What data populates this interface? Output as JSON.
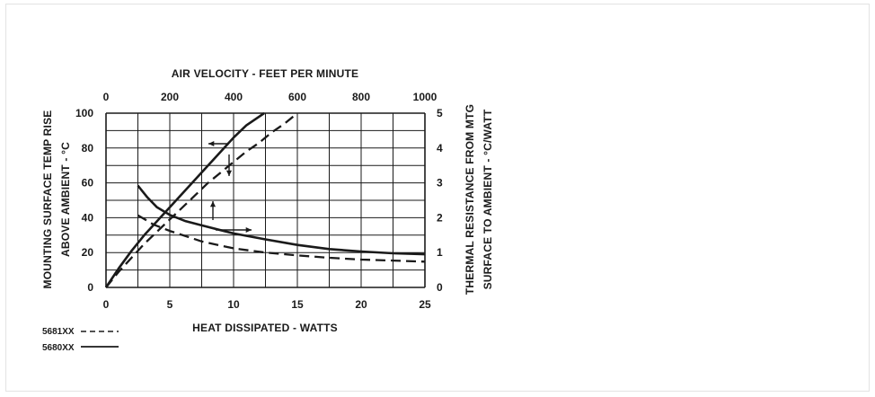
{
  "chart_data": {
    "type": "line",
    "top_axis": {
      "label": "AIR VELOCITY - FEET PER MINUTE",
      "ticks": [
        "0",
        "200",
        "400",
        "600",
        "800",
        "1000"
      ],
      "range": [
        0,
        1000
      ]
    },
    "bottom_axis": {
      "label": "HEAT DISSIPATED - WATTS",
      "ticks": [
        "0",
        "5",
        "10",
        "15",
        "20",
        "25"
      ],
      "range": [
        0,
        25
      ]
    },
    "left_axis": {
      "label_line1": "MOUNTING SURFACE TEMP RISE",
      "label_line2": "ABOVE AMBIENT - °C",
      "ticks": [
        "0",
        "20",
        "40",
        "60",
        "80",
        "100"
      ],
      "range": [
        0,
        100
      ]
    },
    "right_axis": {
      "label_line1": "THERMAL RESISTANCE FROM MTG",
      "label_line2": "SURFACE TO AMBIENT - °C/WATT",
      "ticks": [
        "0",
        "1",
        "2",
        "3",
        "4",
        "5"
      ],
      "range": [
        0,
        5
      ]
    },
    "grid": true,
    "series": [
      {
        "name": "5680XX",
        "style": "solid",
        "kind": "temp_rise_vs_watts",
        "points": [
          [
            0,
            0
          ],
          [
            1,
            11
          ],
          [
            2,
            21
          ],
          [
            3,
            30
          ],
          [
            4,
            38
          ],
          [
            5,
            46
          ],
          [
            6,
            54
          ],
          [
            7,
            62
          ],
          [
            8,
            70
          ],
          [
            9,
            78
          ],
          [
            10,
            86
          ],
          [
            11,
            93
          ],
          [
            12.4,
            100
          ]
        ]
      },
      {
        "name": "5681XX",
        "style": "dashed",
        "kind": "temp_rise_vs_watts",
        "points": [
          [
            0,
            0
          ],
          [
            1,
            9
          ],
          [
            2,
            17
          ],
          [
            3,
            25
          ],
          [
            4,
            32
          ],
          [
            5,
            39
          ],
          [
            6,
            46
          ],
          [
            7,
            53
          ],
          [
            8,
            60
          ],
          [
            9,
            66
          ],
          [
            10,
            72
          ],
          [
            11,
            78
          ],
          [
            12,
            83
          ],
          [
            13,
            89
          ],
          [
            14,
            94
          ],
          [
            15,
            100
          ]
        ]
      },
      {
        "name": "5680XX",
        "style": "solid",
        "kind": "thermal_resistance_vs_air_velocity",
        "points": [
          [
            100,
            2.92
          ],
          [
            130,
            2.58
          ],
          [
            160,
            2.3
          ],
          [
            200,
            2.08
          ],
          [
            250,
            1.9
          ],
          [
            300,
            1.78
          ],
          [
            400,
            1.55
          ],
          [
            500,
            1.38
          ],
          [
            600,
            1.22
          ],
          [
            700,
            1.1
          ],
          [
            800,
            1.03
          ],
          [
            900,
            0.98
          ],
          [
            1000,
            0.95
          ]
        ]
      },
      {
        "name": "5681XX",
        "style": "dashed",
        "kind": "thermal_resistance_vs_air_velocity",
        "points": [
          [
            100,
            2.07
          ],
          [
            150,
            1.8
          ],
          [
            200,
            1.62
          ],
          [
            300,
            1.32
          ],
          [
            400,
            1.12
          ],
          [
            500,
            1.0
          ],
          [
            600,
            0.92
          ],
          [
            700,
            0.85
          ],
          [
            800,
            0.8
          ],
          [
            900,
            0.77
          ],
          [
            1000,
            0.74
          ]
        ]
      }
    ],
    "legend": [
      {
        "name": "5681XX",
        "style": "dashed"
      },
      {
        "name": "5680XX",
        "style": "solid"
      }
    ]
  }
}
